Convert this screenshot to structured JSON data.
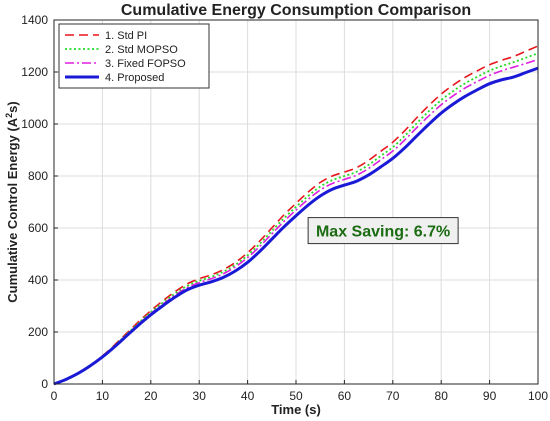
{
  "chart_data": {
    "type": "line",
    "title": "Cumulative Energy Consumption Comparison",
    "xlabel": "Time (s)",
    "ylabel_main": "Cumulative Control Energy (A",
    "ylabel_sup": "2",
    "ylabel_tail": "s)",
    "xlim": [
      0,
      100
    ],
    "ylim": [
      0,
      1400
    ],
    "xticks": [
      0,
      10,
      20,
      30,
      40,
      50,
      60,
      70,
      80,
      90,
      100
    ],
    "yticks": [
      0,
      200,
      400,
      600,
      800,
      1000,
      1200,
      1400
    ],
    "grid": true,
    "legend_position": "top-left",
    "x": [
      0,
      2.5,
      5,
      7.5,
      10,
      12.5,
      15,
      17.5,
      20,
      22.5,
      25,
      27.5,
      30,
      32.5,
      35,
      37.5,
      40,
      42.5,
      45,
      47.5,
      50,
      52.5,
      55,
      57.5,
      60,
      62.5,
      65,
      67.5,
      70,
      72.5,
      75,
      77.5,
      80,
      82.5,
      85,
      87.5,
      90,
      92.5,
      95,
      97.5,
      100
    ],
    "series": [
      {
        "name": "1. Std PI",
        "color": "#e8141b",
        "style": "dashed",
        "values": [
          0,
          18,
          42,
          72,
          108,
          150,
          195,
          240,
          282,
          320,
          355,
          385,
          405,
          420,
          440,
          468,
          505,
          550,
          600,
          650,
          695,
          738,
          775,
          800,
          815,
          832,
          860,
          895,
          930,
          975,
          1025,
          1072,
          1115,
          1150,
          1180,
          1205,
          1228,
          1245,
          1260,
          1280,
          1300
        ]
      },
      {
        "name": "2. Std MOPSO",
        "color": "#22dd22",
        "style": "dotted",
        "values": [
          0,
          18,
          42,
          71,
          106,
          147,
          191,
          235,
          276,
          313,
          348,
          377,
          397,
          412,
          432,
          459,
          495,
          539,
          588,
          637,
          681,
          723,
          759,
          784,
          800,
          816,
          843,
          877,
          911,
          955,
          1004,
          1050,
          1092,
          1127,
          1157,
          1182,
          1205,
          1223,
          1238,
          1255,
          1272
        ]
      },
      {
        "name": "3. Fixed FOPSO",
        "color": "#e01ee0",
        "style": "dashdot",
        "values": [
          0,
          18,
          42,
          71,
          105,
          145,
          188,
          231,
          271,
          307,
          341,
          370,
          390,
          405,
          424,
          451,
          486,
          529,
          577,
          625,
          669,
          710,
          746,
          771,
          787,
          803,
          829,
          862,
          896,
          939,
          987,
          1032,
          1074,
          1109,
          1139,
          1164,
          1187,
          1205,
          1219,
          1233,
          1248
        ]
      },
      {
        "name": "4. Proposed",
        "color": "#1a1ad6",
        "style": "solid",
        "values": [
          0,
          18,
          41,
          70,
          104,
          143,
          185,
          227,
          266,
          301,
          334,
          362,
          380,
          393,
          410,
          435,
          468,
          510,
          557,
          604,
          647,
          688,
          723,
          749,
          765,
          780,
          804,
          835,
          868,
          909,
          955,
          1000,
          1042,
          1077,
          1107,
          1132,
          1155,
          1170,
          1181,
          1198,
          1215
        ]
      }
    ],
    "annotation": {
      "text": "Max Saving: 6.7%",
      "x": 68,
      "y": 590,
      "text_color": "#1a6b12",
      "box_color": "#f0f0f0"
    }
  }
}
